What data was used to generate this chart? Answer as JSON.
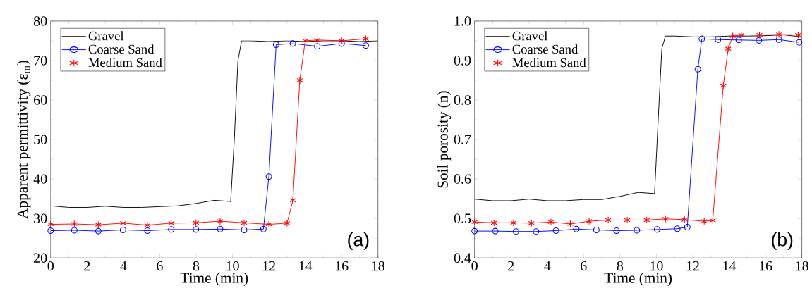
{
  "chart_data": [
    {
      "type": "line",
      "xlabel": "Time (min)",
      "ylabel": "Apparent permittivity (ε$_{m}$)",
      "xlim": [
        0,
        18
      ],
      "ylim": [
        20,
        80
      ],
      "xticks": [
        0,
        2,
        4,
        6,
        8,
        10,
        12,
        14,
        16,
        18
      ],
      "yticks": [
        20,
        30,
        40,
        50,
        60,
        70,
        80
      ],
      "legend": "top left",
      "annotations": [
        "(a)"
      ],
      "series": [
        {
          "name": "Gravel",
          "color": "#000000",
          "marker": "none",
          "x": [
            0,
            1,
            2,
            3,
            4,
            5,
            6,
            7,
            8,
            9,
            9.9,
            10.1,
            10.3,
            10.5,
            11,
            12,
            13,
            14,
            15,
            16,
            17,
            18
          ],
          "values": [
            33.2,
            32.8,
            32.8,
            33.1,
            32.8,
            32.8,
            33.0,
            33.2,
            33.8,
            34.6,
            34.3,
            50,
            70,
            75,
            75,
            74.8,
            75,
            74.8,
            75,
            75,
            74.8,
            75
          ]
        },
        {
          "name": "Coarse Sand",
          "color": "#0000ff",
          "marker": "circle",
          "x": [
            0,
            1.3,
            2.62,
            3.98,
            5.32,
            6.63,
            7.99,
            9.32,
            10.64,
            11.7,
            12.0,
            12.4,
            13.32,
            14.66,
            16.0,
            17.33
          ],
          "values": [
            26.9,
            27.0,
            26.8,
            27.1,
            26.9,
            27.2,
            27.2,
            27.3,
            27.1,
            27.3,
            40.6,
            74.0,
            74.3,
            73.6,
            74.3,
            73.8
          ]
        },
        {
          "name": "Medium Sand",
          "color": "#ff0000",
          "marker": "cross",
          "x": [
            0,
            1.3,
            2.62,
            3.98,
            5.32,
            6.63,
            7.99,
            9.32,
            10.64,
            12.0,
            13.0,
            13.32,
            13.7,
            14.0,
            14.66,
            16.0,
            17.33
          ],
          "values": [
            28.5,
            28.6,
            28.4,
            28.8,
            28.3,
            28.8,
            28.9,
            29.3,
            28.9,
            28.5,
            28.8,
            34.6,
            65,
            75,
            75.2,
            75.0,
            75.5
          ]
        }
      ]
    },
    {
      "type": "line",
      "xlabel": "Time (min)",
      "ylabel": "Soil porosity (n)",
      "xlim": [
        0,
        18
      ],
      "ylim": [
        0.4,
        1.0
      ],
      "xticks": [
        0,
        2,
        4,
        6,
        8,
        10,
        12,
        14,
        16,
        18
      ],
      "yticks": [
        {
          "value": 0.4,
          "label": "0.4"
        },
        {
          "value": 0.5,
          "label": "0.5"
        },
        {
          "value": 0.6,
          "label": "0.6"
        },
        {
          "value": 0.7,
          "label": "0.7"
        },
        {
          "value": 0.8,
          "label": "0.8"
        },
        {
          "value": 0.9,
          "label": "0.9"
        },
        {
          "value": 1.0,
          "label": "1.0"
        }
      ],
      "legend": "top left",
      "annotations": [
        "(b)"
      ],
      "series": [
        {
          "name": "Gravel",
          "color": "#000000",
          "marker": "none",
          "x": [
            0,
            1,
            2,
            3,
            4,
            5,
            6,
            7,
            8,
            9,
            9.9,
            10.1,
            10.3,
            10.5,
            11,
            12,
            13,
            14,
            15,
            16,
            17,
            18
          ],
          "values": [
            0.549,
            0.545,
            0.545,
            0.549,
            0.545,
            0.545,
            0.548,
            0.548,
            0.556,
            0.566,
            0.563,
            0.75,
            0.93,
            0.962,
            0.962,
            0.96,
            0.96,
            0.962,
            0.962,
            0.963,
            0.965,
            0.96
          ]
        },
        {
          "name": "Coarse Sand",
          "color": "#0000ff",
          "marker": "circle",
          "x": [
            0,
            1.14,
            2.28,
            3.38,
            4.48,
            5.6,
            6.7,
            7.81,
            8.93,
            10.04,
            11.15,
            11.7,
            12.28,
            12.5,
            13.39,
            14.53,
            15.64,
            16.74,
            17.85
          ],
          "values": [
            0.468,
            0.468,
            0.467,
            0.467,
            0.469,
            0.473,
            0.471,
            0.469,
            0.47,
            0.472,
            0.474,
            0.478,
            0.878,
            0.955,
            0.953,
            0.952,
            0.951,
            0.953,
            0.946
          ]
        },
        {
          "name": "Medium Sand",
          "color": "#ff0000",
          "marker": "cross",
          "x": [
            0,
            1.07,
            2.14,
            3.13,
            4.2,
            5.27,
            6.3,
            7.35,
            8.4,
            9.47,
            10.5,
            11.55,
            12.63,
            13.1,
            13.68,
            13.95,
            14.2,
            14.67,
            15.67,
            16.74,
            17.8
          ],
          "values": [
            0.491,
            0.489,
            0.489,
            0.488,
            0.491,
            0.486,
            0.493,
            0.496,
            0.496,
            0.496,
            0.499,
            0.497,
            0.493,
            0.495,
            0.837,
            0.93,
            0.962,
            0.965,
            0.965,
            0.966,
            0.965
          ]
        }
      ]
    }
  ]
}
